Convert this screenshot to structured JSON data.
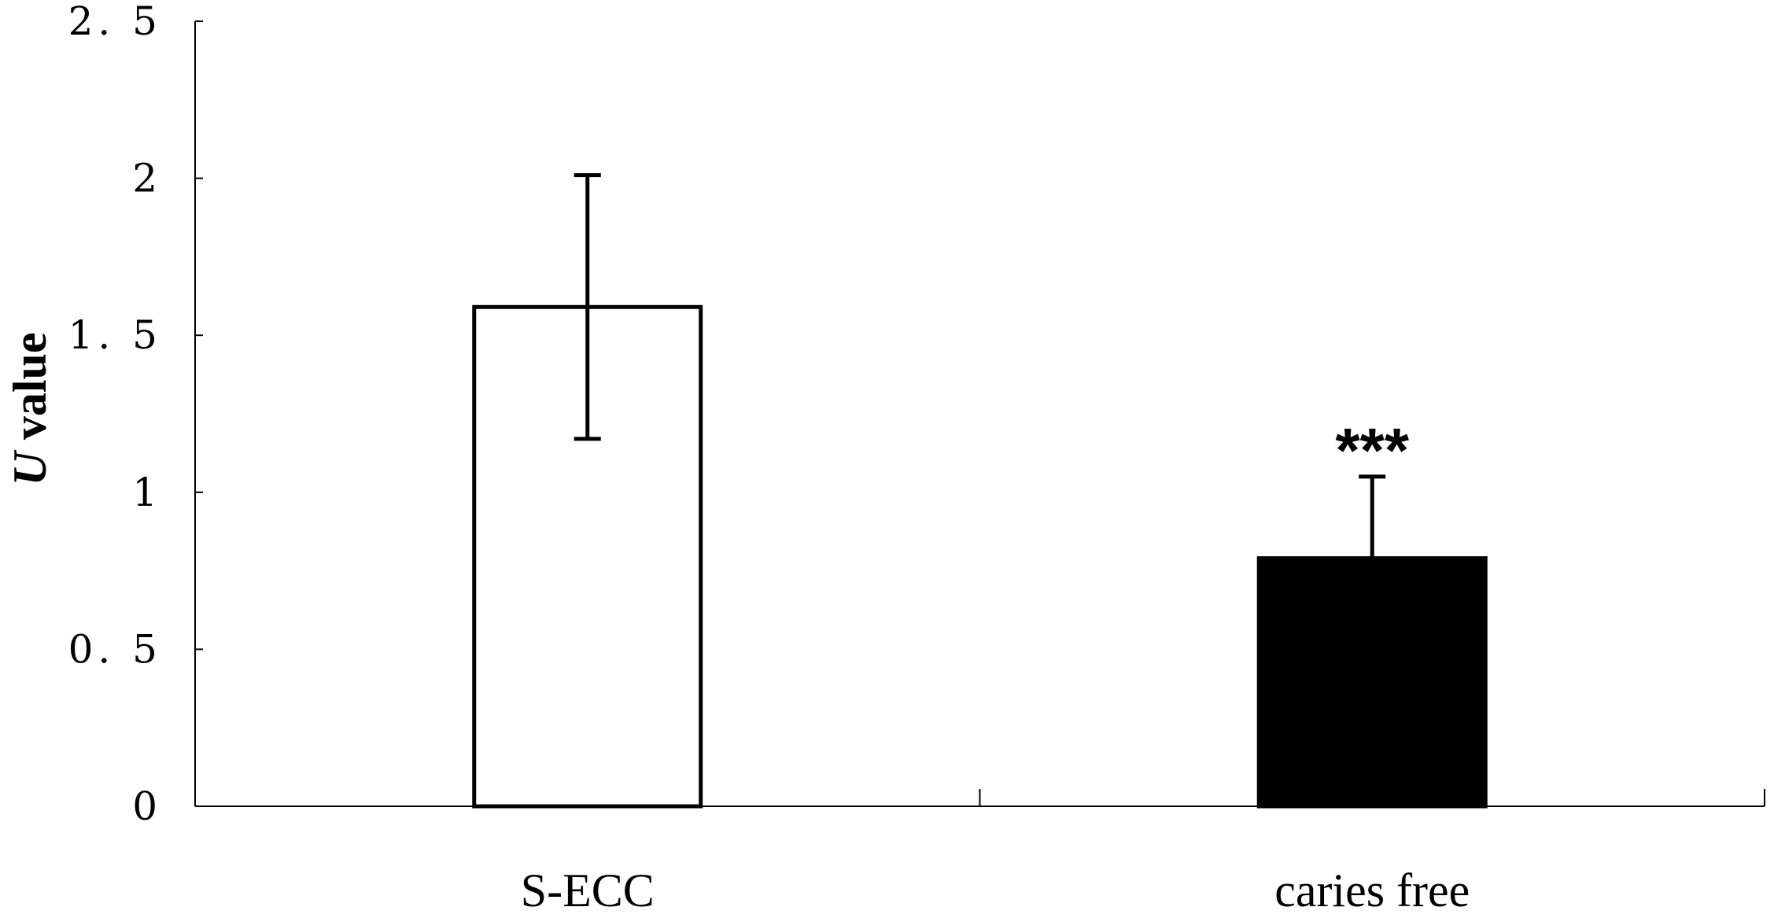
{
  "chart_data": {
    "type": "bar",
    "categories": [
      "S-ECC",
      "caries free"
    ],
    "values": [
      1.59,
      0.79
    ],
    "error_upper": [
      2.01,
      1.05
    ],
    "error_lower": [
      1.17,
      null
    ],
    "bar_fill": [
      "#ffffff",
      "#000000"
    ],
    "annotations": [
      {
        "category": "caries free",
        "text": "***"
      }
    ],
    "ylabel_italic": "U",
    "ylabel_rest": " value",
    "xlabel": "",
    "ylim": [
      0,
      2.5
    ],
    "yticks": [
      0,
      0.5,
      1,
      1.5,
      2,
      2.5
    ],
    "ytick_labels": [
      "0",
      "0. 5",
      "1",
      "1. 5",
      "2",
      "2. 5"
    ],
    "grid": false,
    "legend": "none"
  }
}
